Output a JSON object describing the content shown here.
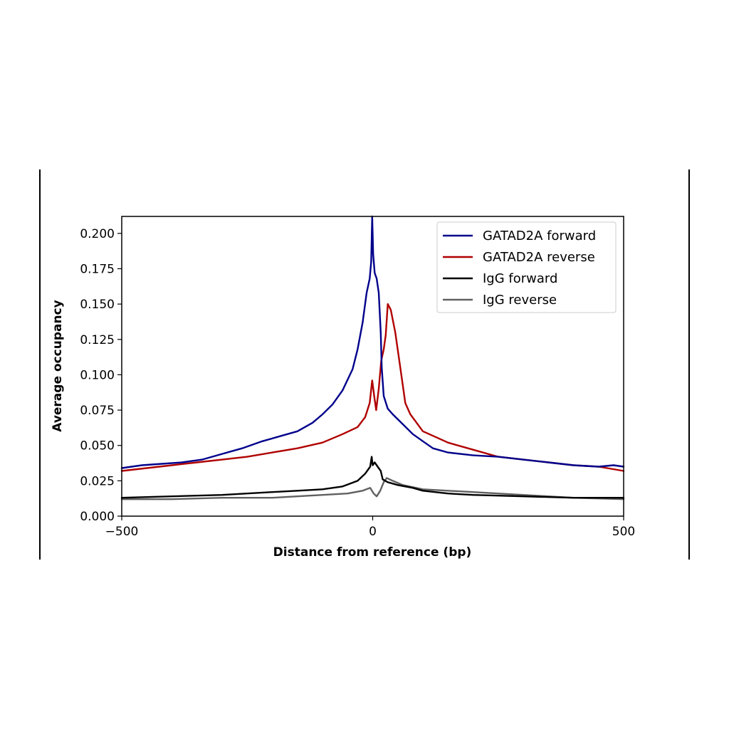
{
  "chart_data": {
    "type": "line",
    "title": "",
    "xlabel": "Distance from reference (bp)",
    "ylabel": "Average occupancy",
    "xlim": [
      -500,
      500
    ],
    "ylim": [
      0,
      0.212
    ],
    "xticks": [
      -500,
      0,
      500
    ],
    "xtick_labels": [
      "−500",
      "0",
      "500"
    ],
    "yticks": [
      0,
      0.025,
      0.05,
      0.075,
      0.1,
      0.125,
      0.15,
      0.175,
      0.2
    ],
    "ytick_labels": [
      "0.000",
      "0.025",
      "0.050",
      "0.075",
      "0.100",
      "0.125",
      "0.150",
      "0.175",
      "0.200"
    ],
    "grid": false,
    "legend_position": "top-right",
    "series": [
      {
        "name": "GATAD2A forward",
        "color": "#00008b",
        "points": [
          [
            -500,
            0.034
          ],
          [
            -460,
            0.036
          ],
          [
            -420,
            0.037
          ],
          [
            -380,
            0.038
          ],
          [
            -340,
            0.04
          ],
          [
            -300,
            0.044
          ],
          [
            -260,
            0.048
          ],
          [
            -220,
            0.053
          ],
          [
            -180,
            0.057
          ],
          [
            -150,
            0.06
          ],
          [
            -120,
            0.066
          ],
          [
            -100,
            0.072
          ],
          [
            -80,
            0.079
          ],
          [
            -60,
            0.089
          ],
          [
            -40,
            0.104
          ],
          [
            -30,
            0.118
          ],
          [
            -20,
            0.137
          ],
          [
            -12,
            0.158
          ],
          [
            -6,
            0.168
          ],
          [
            -3,
            0.18
          ],
          [
            -1,
            0.212
          ],
          [
            1,
            0.185
          ],
          [
            4,
            0.172
          ],
          [
            8,
            0.168
          ],
          [
            12,
            0.158
          ],
          [
            16,
            0.13
          ],
          [
            18,
            0.105
          ],
          [
            22,
            0.085
          ],
          [
            30,
            0.076
          ],
          [
            40,
            0.072
          ],
          [
            60,
            0.065
          ],
          [
            80,
            0.058
          ],
          [
            100,
            0.053
          ],
          [
            120,
            0.048
          ],
          [
            150,
            0.045
          ],
          [
            200,
            0.043
          ],
          [
            250,
            0.042
          ],
          [
            300,
            0.04
          ],
          [
            350,
            0.038
          ],
          [
            400,
            0.036
          ],
          [
            450,
            0.035
          ],
          [
            480,
            0.036
          ],
          [
            500,
            0.035
          ]
        ]
      },
      {
        "name": "GATAD2A reverse",
        "color": "#b00000",
        "points": [
          [
            -500,
            0.032
          ],
          [
            -450,
            0.034
          ],
          [
            -400,
            0.036
          ],
          [
            -350,
            0.038
          ],
          [
            -300,
            0.04
          ],
          [
            -250,
            0.042
          ],
          [
            -200,
            0.045
          ],
          [
            -150,
            0.048
          ],
          [
            -100,
            0.052
          ],
          [
            -60,
            0.058
          ],
          [
            -30,
            0.063
          ],
          [
            -15,
            0.07
          ],
          [
            -6,
            0.08
          ],
          [
            -1,
            0.096
          ],
          [
            3,
            0.085
          ],
          [
            7,
            0.075
          ],
          [
            12,
            0.09
          ],
          [
            17,
            0.11
          ],
          [
            22,
            0.118
          ],
          [
            26,
            0.128
          ],
          [
            30,
            0.15
          ],
          [
            36,
            0.146
          ],
          [
            45,
            0.13
          ],
          [
            55,
            0.105
          ],
          [
            65,
            0.08
          ],
          [
            75,
            0.072
          ],
          [
            100,
            0.06
          ],
          [
            150,
            0.052
          ],
          [
            200,
            0.047
          ],
          [
            250,
            0.042
          ],
          [
            300,
            0.04
          ],
          [
            350,
            0.038
          ],
          [
            400,
            0.036
          ],
          [
            450,
            0.035
          ],
          [
            500,
            0.032
          ]
        ]
      },
      {
        "name": "IgG forward",
        "color": "#000000",
        "points": [
          [
            -500,
            0.013
          ],
          [
            -400,
            0.014
          ],
          [
            -300,
            0.015
          ],
          [
            -200,
            0.017
          ],
          [
            -150,
            0.018
          ],
          [
            -100,
            0.019
          ],
          [
            -60,
            0.021
          ],
          [
            -30,
            0.025
          ],
          [
            -15,
            0.03
          ],
          [
            -5,
            0.035
          ],
          [
            -2,
            0.042
          ],
          [
            0,
            0.036
          ],
          [
            4,
            0.038
          ],
          [
            10,
            0.035
          ],
          [
            16,
            0.032
          ],
          [
            20,
            0.026
          ],
          [
            30,
            0.024
          ],
          [
            50,
            0.022
          ],
          [
            80,
            0.02
          ],
          [
            100,
            0.018
          ],
          [
            150,
            0.016
          ],
          [
            200,
            0.015
          ],
          [
            300,
            0.014
          ],
          [
            400,
            0.013
          ],
          [
            500,
            0.013
          ]
        ]
      },
      {
        "name": "IgG reverse",
        "color": "#606060",
        "points": [
          [
            -500,
            0.012
          ],
          [
            -400,
            0.012
          ],
          [
            -300,
            0.013
          ],
          [
            -200,
            0.013
          ],
          [
            -100,
            0.015
          ],
          [
            -50,
            0.016
          ],
          [
            -20,
            0.018
          ],
          [
            -5,
            0.02
          ],
          [
            2,
            0.016
          ],
          [
            8,
            0.014
          ],
          [
            15,
            0.018
          ],
          [
            22,
            0.024
          ],
          [
            28,
            0.027
          ],
          [
            40,
            0.025
          ],
          [
            60,
            0.022
          ],
          [
            100,
            0.019
          ],
          [
            150,
            0.018
          ],
          [
            200,
            0.017
          ],
          [
            250,
            0.016
          ],
          [
            300,
            0.015
          ],
          [
            400,
            0.013
          ],
          [
            500,
            0.012
          ]
        ]
      }
    ]
  }
}
